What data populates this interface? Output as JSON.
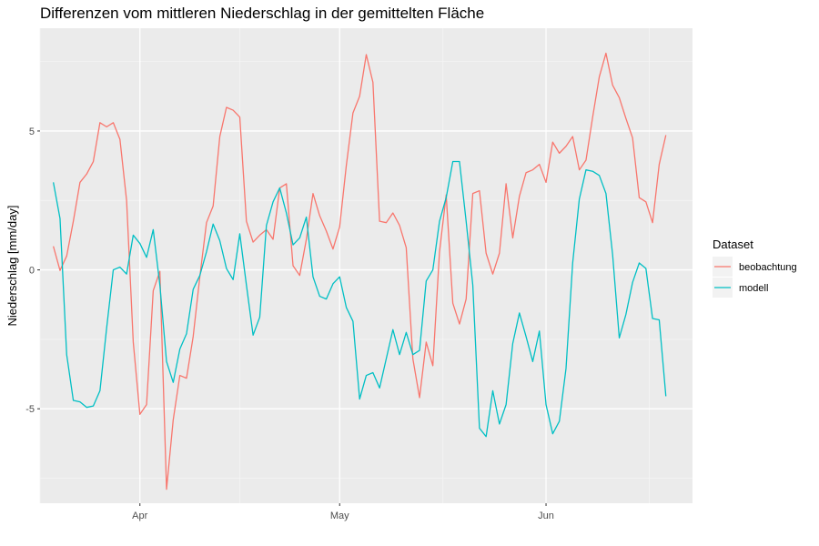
{
  "chart_data": {
    "type": "line",
    "title": "Differenzen vom mittleren Niederschlag in der gemittelten Fläche",
    "xlabel": "",
    "ylabel": "Niederschlag [mm/day]",
    "x_start": "2020-03-19",
    "x_range": [
      "2020-03-17",
      "2020-06-23"
    ],
    "x_ticks": [
      {
        "label": "Apr",
        "date": "2020-04-01"
      },
      {
        "label": "May",
        "date": "2020-05-01"
      },
      {
        "label": "Jun",
        "date": "2020-06-01"
      }
    ],
    "ylim": [
      -8.4,
      8.7
    ],
    "y_ticks": [
      -5,
      0,
      5
    ],
    "grid": true,
    "legend": {
      "title": "Dataset",
      "position": "right"
    },
    "series": [
      {
        "name": "beobachtung",
        "color": "#F8766D",
        "values": [
          0.85,
          -0.02,
          0.5,
          1.75,
          3.15,
          3.45,
          3.9,
          5.3,
          5.15,
          5.3,
          4.7,
          2.5,
          -2.6,
          -5.2,
          -4.85,
          -0.75,
          -0.05,
          -7.9,
          -5.4,
          -3.8,
          -3.9,
          -2.4,
          -0.25,
          1.7,
          2.3,
          4.8,
          5.85,
          5.75,
          5.5,
          1.75,
          1.0,
          1.25,
          1.45,
          1.1,
          2.95,
          3.1,
          0.15,
          -0.2,
          1.1,
          2.75,
          1.95,
          1.4,
          0.75,
          1.55,
          3.75,
          5.65,
          6.25,
          7.75,
          6.75,
          1.75,
          1.7,
          2.05,
          1.6,
          0.8,
          -3.2,
          -4.6,
          -2.6,
          -3.45,
          0.65,
          2.7,
          -1.2,
          -1.95,
          -1.05,
          2.75,
          2.85,
          0.6,
          -0.15,
          0.6,
          3.1,
          1.15,
          2.65,
          3.5,
          3.6,
          3.8,
          3.15,
          4.6,
          4.2,
          4.45,
          4.8,
          3.6,
          3.95,
          5.5,
          6.95,
          7.8,
          6.65,
          6.2,
          5.45,
          4.75,
          2.6,
          2.45,
          1.7,
          3.8,
          4.85
        ]
      },
      {
        "name": "modell",
        "color": "#00BFC4",
        "values": [
          3.15,
          1.85,
          -3.05,
          -4.7,
          -4.75,
          -4.95,
          -4.9,
          -4.35,
          -2.1,
          0.0,
          0.1,
          -0.15,
          1.25,
          0.95,
          0.45,
          1.45,
          -0.55,
          -3.3,
          -4.05,
          -2.85,
          -2.3,
          -0.7,
          -0.2,
          0.65,
          1.65,
          1.05,
          0.05,
          -0.35,
          1.3,
          -0.55,
          -2.35,
          -1.7,
          1.6,
          2.45,
          2.95,
          2.05,
          0.9,
          1.15,
          1.9,
          -0.25,
          -0.95,
          -1.05,
          -0.5,
          -0.25,
          -1.35,
          -1.85,
          -4.65,
          -3.8,
          -3.7,
          -4.25,
          -3.2,
          -2.15,
          -3.05,
          -2.25,
          -3.05,
          -2.9,
          -0.4,
          0.0,
          1.75,
          2.6,
          3.9,
          3.9,
          1.75,
          -0.55,
          -5.7,
          -6.0,
          -4.35,
          -5.55,
          -4.85,
          -2.65,
          -1.55,
          -2.4,
          -3.3,
          -2.2,
          -4.85,
          -5.9,
          -5.45,
          -3.55,
          0.25,
          2.55,
          3.6,
          3.55,
          3.4,
          2.75,
          0.55,
          -2.45,
          -1.6,
          -0.45,
          0.25,
          0.05,
          -1.75,
          -1.8,
          -4.55
        ]
      }
    ]
  }
}
